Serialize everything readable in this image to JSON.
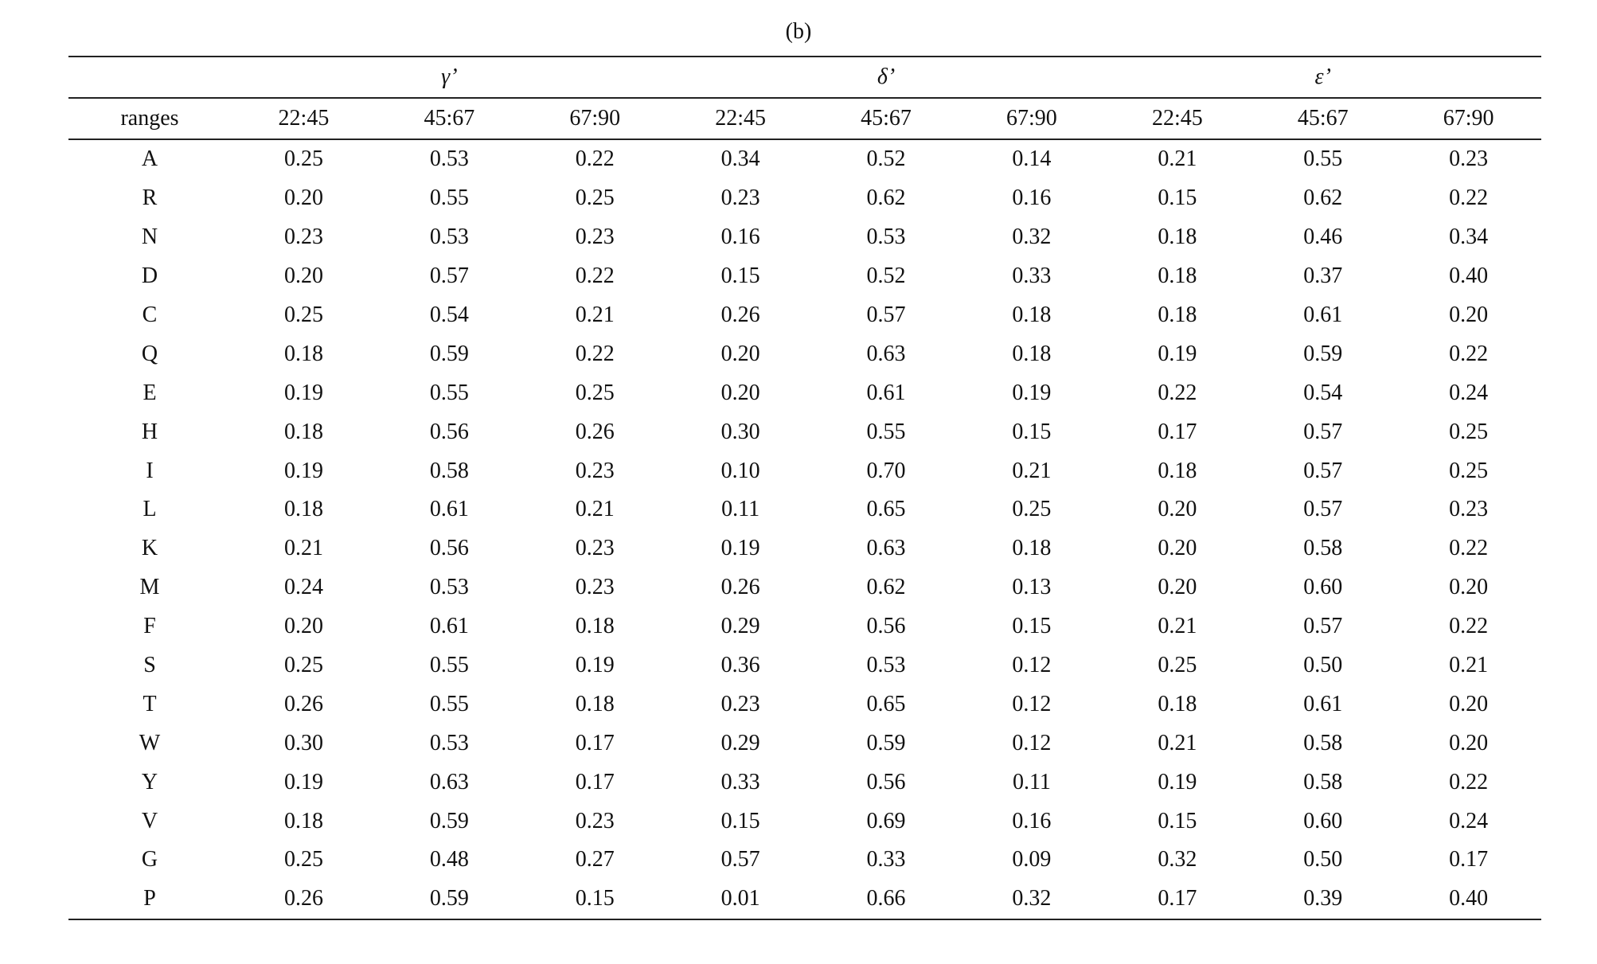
{
  "caption": "(b)",
  "table": {
    "groups": [
      "γ’",
      "δ’",
      "ε’"
    ],
    "header": [
      "ranges",
      "22:45",
      "45:67",
      "67:90",
      "22:45",
      "45:67",
      "67:90",
      "22:45",
      "45:67",
      "67:90"
    ],
    "rows": [
      [
        "A",
        "0.25",
        "0.53",
        "0.22",
        "0.34",
        "0.52",
        "0.14",
        "0.21",
        "0.55",
        "0.23"
      ],
      [
        "R",
        "0.20",
        "0.55",
        "0.25",
        "0.23",
        "0.62",
        "0.16",
        "0.15",
        "0.62",
        "0.22"
      ],
      [
        "N",
        "0.23",
        "0.53",
        "0.23",
        "0.16",
        "0.53",
        "0.32",
        "0.18",
        "0.46",
        "0.34"
      ],
      [
        "D",
        "0.20",
        "0.57",
        "0.22",
        "0.15",
        "0.52",
        "0.33",
        "0.18",
        "0.37",
        "0.40"
      ],
      [
        "C",
        "0.25",
        "0.54",
        "0.21",
        "0.26",
        "0.57",
        "0.18",
        "0.18",
        "0.61",
        "0.20"
      ],
      [
        "Q",
        "0.18",
        "0.59",
        "0.22",
        "0.20",
        "0.63",
        "0.18",
        "0.19",
        "0.59",
        "0.22"
      ],
      [
        "E",
        "0.19",
        "0.55",
        "0.25",
        "0.20",
        "0.61",
        "0.19",
        "0.22",
        "0.54",
        "0.24"
      ],
      [
        "H",
        "0.18",
        "0.56",
        "0.26",
        "0.30",
        "0.55",
        "0.15",
        "0.17",
        "0.57",
        "0.25"
      ],
      [
        "I",
        "0.19",
        "0.58",
        "0.23",
        "0.10",
        "0.70",
        "0.21",
        "0.18",
        "0.57",
        "0.25"
      ],
      [
        "L",
        "0.18",
        "0.61",
        "0.21",
        "0.11",
        "0.65",
        "0.25",
        "0.20",
        "0.57",
        "0.23"
      ],
      [
        "K",
        "0.21",
        "0.56",
        "0.23",
        "0.19",
        "0.63",
        "0.18",
        "0.20",
        "0.58",
        "0.22"
      ],
      [
        "M",
        "0.24",
        "0.53",
        "0.23",
        "0.26",
        "0.62",
        "0.13",
        "0.20",
        "0.60",
        "0.20"
      ],
      [
        "F",
        "0.20",
        "0.61",
        "0.18",
        "0.29",
        "0.56",
        "0.15",
        "0.21",
        "0.57",
        "0.22"
      ],
      [
        "S",
        "0.25",
        "0.55",
        "0.19",
        "0.36",
        "0.53",
        "0.12",
        "0.25",
        "0.50",
        "0.21"
      ],
      [
        "T",
        "0.26",
        "0.55",
        "0.18",
        "0.23",
        "0.65",
        "0.12",
        "0.18",
        "0.61",
        "0.20"
      ],
      [
        "W",
        "0.30",
        "0.53",
        "0.17",
        "0.29",
        "0.59",
        "0.12",
        "0.21",
        "0.58",
        "0.20"
      ],
      [
        "Y",
        "0.19",
        "0.63",
        "0.17",
        "0.33",
        "0.56",
        "0.11",
        "0.19",
        "0.58",
        "0.22"
      ],
      [
        "V",
        "0.18",
        "0.59",
        "0.23",
        "0.15",
        "0.69",
        "0.16",
        "0.15",
        "0.60",
        "0.24"
      ],
      [
        "G",
        "0.25",
        "0.48",
        "0.27",
        "0.57",
        "0.33",
        "0.09",
        "0.32",
        "0.50",
        "0.17"
      ],
      [
        "P",
        "0.26",
        "0.59",
        "0.15",
        "0.01",
        "0.66",
        "0.32",
        "0.17",
        "0.39",
        "0.40"
      ]
    ]
  }
}
